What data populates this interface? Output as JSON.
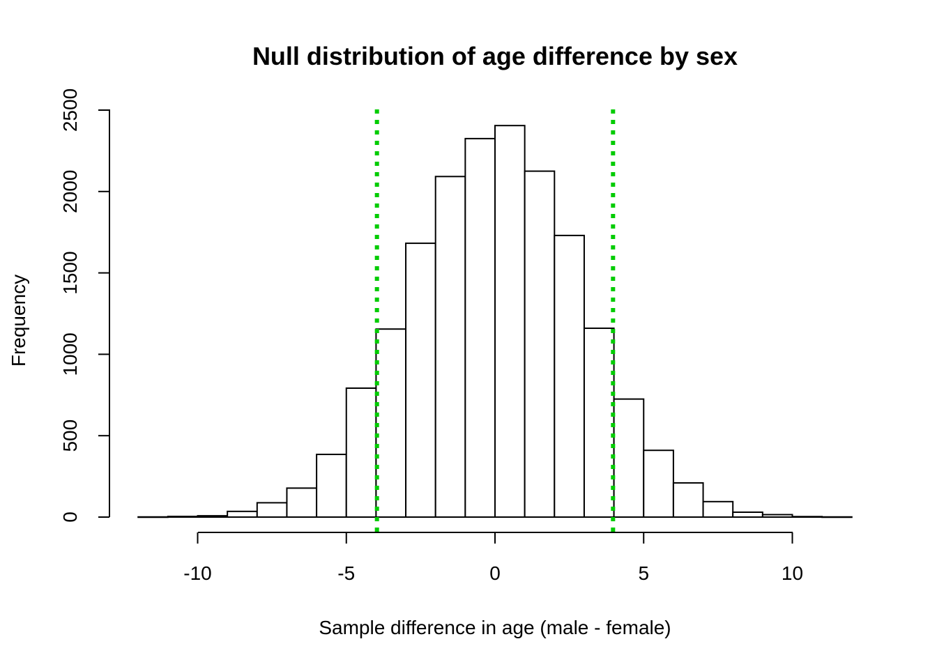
{
  "colors": {
    "bar_fill": "#ffffff",
    "bar_stroke": "#000000",
    "reference_line": "#00cc00"
  },
  "chart_data": {
    "type": "bar",
    "title": "Null distribution of age difference by sex",
    "xlabel": "Sample difference in age (male - female)",
    "ylabel": "Frequency",
    "xlim": [
      -12,
      12
    ],
    "ylim": [
      0,
      2500
    ],
    "grid": false,
    "xticks": [
      -10,
      -5,
      0,
      5,
      10
    ],
    "yticks": [
      0,
      500,
      1000,
      1500,
      2000,
      2500
    ],
    "bin_edges": [
      -12,
      -11,
      -10,
      -9,
      -8,
      -7,
      -6,
      -5,
      -4,
      -3,
      -2,
      -1,
      0,
      1,
      2,
      3,
      4,
      5,
      6,
      7,
      8,
      9,
      10,
      11,
      12
    ],
    "values": [
      1,
      4,
      8,
      35,
      88,
      178,
      385,
      792,
      1155,
      1682,
      2092,
      2325,
      2405,
      2125,
      1730,
      1160,
      725,
      410,
      210,
      95,
      30,
      15,
      3,
      1
    ],
    "reference_lines": [
      {
        "x": -3.97,
        "orientation": "vertical",
        "style": "dotted"
      },
      {
        "x": 3.97,
        "orientation": "vertical",
        "style": "dotted"
      }
    ]
  }
}
